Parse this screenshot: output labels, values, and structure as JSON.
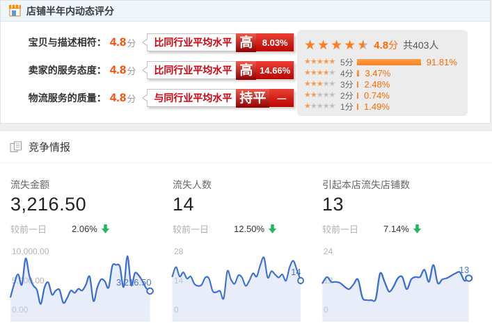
{
  "panel_rating": {
    "title": "店铺半年内动态评分",
    "rows": [
      {
        "label": "宝贝与描述相符：",
        "score": "4.8",
        "unit": "分",
        "compare": "比同行业平均水平",
        "level": "高",
        "value": "8.03%"
      },
      {
        "label": "卖家的服务态度：",
        "score": "4.8",
        "unit": "分",
        "compare": "比同行业平均水平",
        "level": "高",
        "value": "14.66%"
      },
      {
        "label": "物流服务的质量：",
        "score": "4.8",
        "unit": "分",
        "compare": "与同行业平均水平",
        "level": "持平",
        "value": "—"
      }
    ],
    "summary": {
      "stars": 4.5,
      "score": "4.8",
      "unit": "分",
      "total": "共403人"
    },
    "distribution": [
      {
        "stars": 5,
        "label": "5分",
        "pct": "91.81%",
        "value": 91.81
      },
      {
        "stars": 4,
        "label": "4分",
        "pct": "3.47%",
        "value": 3.47
      },
      {
        "stars": 3,
        "label": "3分",
        "pct": "2.48%",
        "value": 2.48
      },
      {
        "stars": 2,
        "label": "2分",
        "pct": "0.74%",
        "value": 0.74
      },
      {
        "stars": 1,
        "label": "1分",
        "pct": "1.49%",
        "value": 1.49
      }
    ]
  },
  "panel_competition": {
    "title": "竞争情报",
    "metrics": [
      {
        "name": "流失金额",
        "value": "3,216.50",
        "delta_label": "较前一日",
        "delta": "2.06%",
        "direction": "down"
      },
      {
        "name": "流失人数",
        "value": "14",
        "delta_label": "较前一日",
        "delta": "12.50%",
        "direction": "down"
      },
      {
        "name": "引起本店流失店铺数",
        "value": "13",
        "delta_label": "较前一日",
        "delta": "7.14%",
        "direction": "down"
      }
    ]
  },
  "chart_data": [
    {
      "type": "area",
      "title": "流失金额",
      "ylim": [
        0,
        10000
      ],
      "yticks": [
        "10,000.00",
        "5,000.00",
        "0.00"
      ],
      "end_label": "3,216.50",
      "values": [
        2200,
        4500,
        6100,
        4300,
        8800,
        5800,
        4200,
        3400,
        1000,
        3800,
        4700,
        2600,
        3300,
        3400,
        1200,
        2000,
        3300,
        2900,
        3600,
        3300,
        4300,
        5700,
        1500,
        3800,
        5200,
        4900,
        3800,
        7500,
        7700,
        7400,
        3900,
        9200,
        4200,
        6300,
        5900,
        4900,
        3700,
        3216.5
      ]
    },
    {
      "type": "area",
      "title": "流失人数",
      "ylim": [
        0,
        28
      ],
      "yticks": [
        "28",
        "14",
        "0"
      ],
      "end_label": "14",
      "values": [
        16,
        20.5,
        16,
        18,
        15,
        16,
        12.5,
        11.5,
        12,
        15.5,
        15,
        9,
        8.5,
        9,
        5.5,
        18.5,
        14.5,
        12.5,
        16.5,
        15.5,
        11.5,
        14,
        17.5,
        16,
        21.5,
        25,
        15.5,
        18.5,
        17,
        15.5,
        17,
        14,
        20.5,
        23.5,
        19,
        14
      ]
    },
    {
      "type": "area",
      "title": "引起本店流失店铺数",
      "ylim": [
        0,
        24
      ],
      "yticks": [
        "24",
        "12",
        "0"
      ],
      "end_label": "13",
      "values": [
        11,
        13.5,
        11.5,
        11.5,
        11,
        9.5,
        8.5,
        10.5,
        12.5,
        5,
        4,
        4,
        4.5,
        15,
        11.5,
        7.5,
        9.5,
        13,
        13.5,
        8.5,
        12.5,
        13.5,
        13.5,
        16.5,
        11.5,
        18.5,
        11,
        12.5,
        13,
        14,
        15,
        15.5,
        12,
        13
      ]
    }
  ],
  "colors": {
    "accent_red": "#d7000f",
    "accent_orange": "#ff6a00",
    "star_orange": "#ff7d1f",
    "chart_blue": "#3b6fd5",
    "delta_green": "#25b864",
    "header_bg": "#eef5fb"
  }
}
